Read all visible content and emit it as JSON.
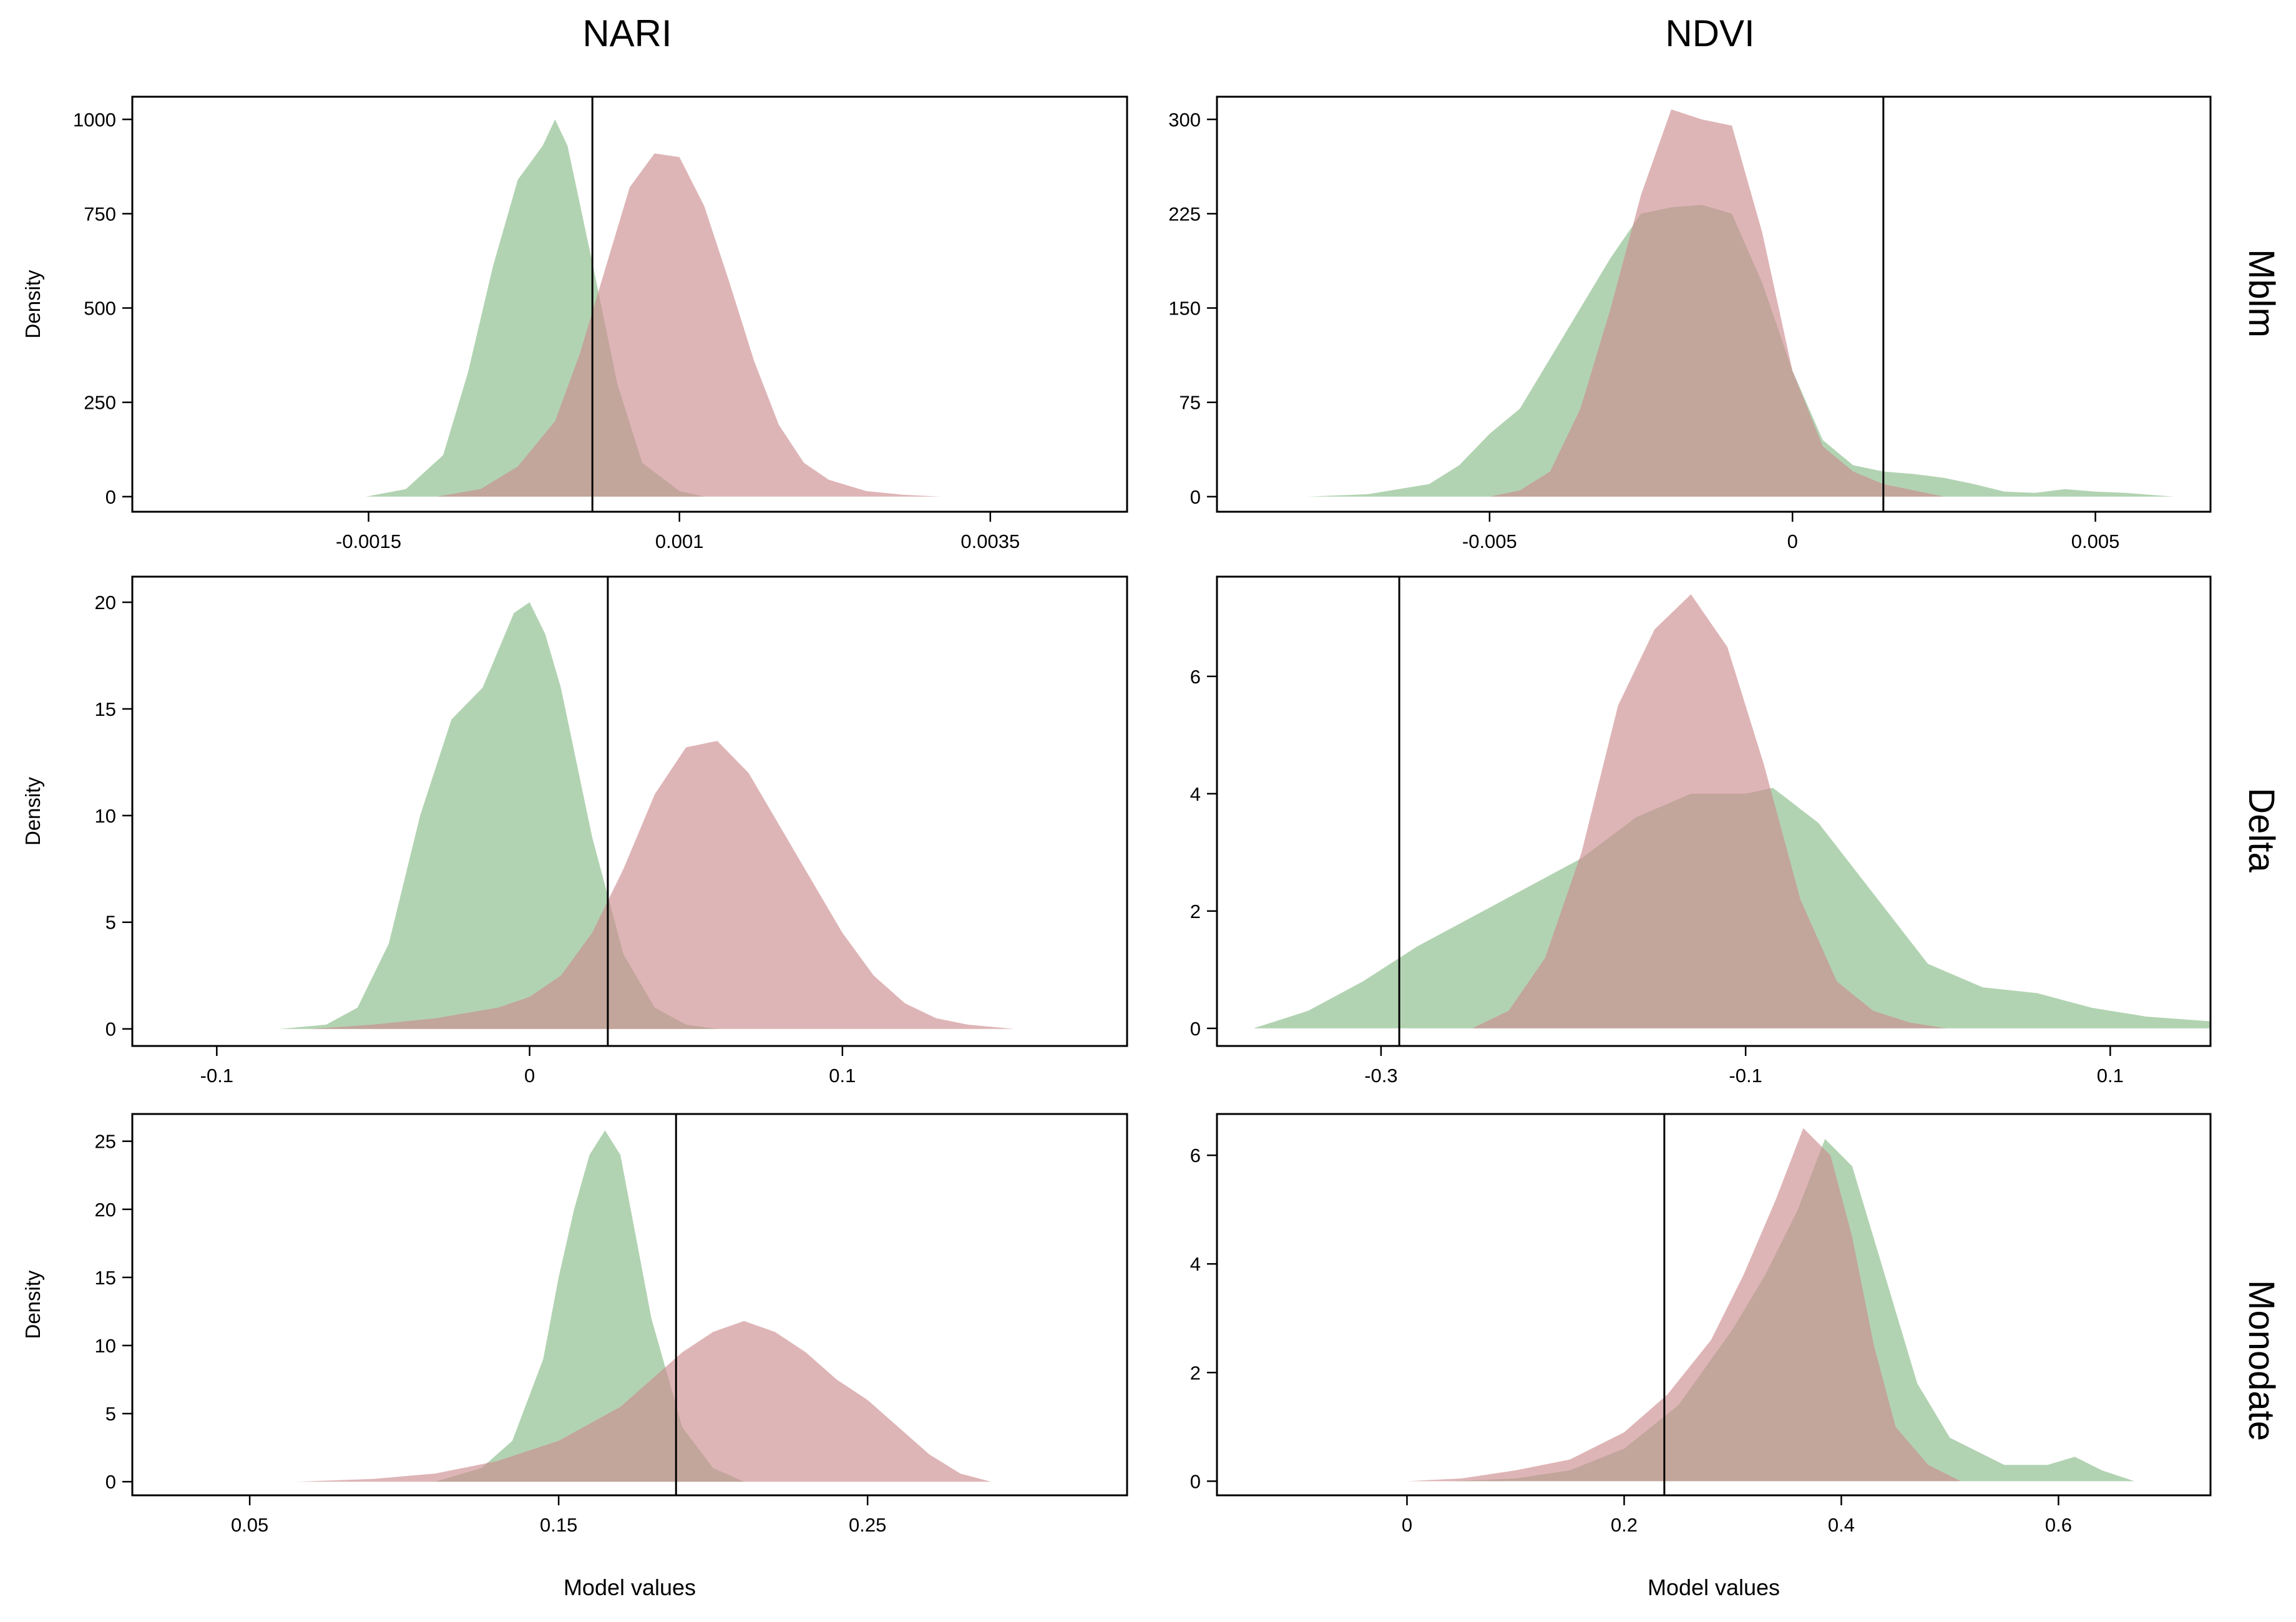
{
  "figure": {
    "col_titles": [
      "NARI",
      "NDVI"
    ],
    "row_labels": [
      "Mblm",
      "Delta",
      "Monodate"
    ],
    "colors": {
      "green": "#97c497",
      "red": "#cb8a8d",
      "overlap": "#a38f7d"
    }
  },
  "chart_data": [
    {
      "id": "nari-mblm",
      "type": "area",
      "column": "NARI",
      "row": "Mblm",
      "ylabel": "Density",
      "xlabel": "",
      "xlim": [
        -0.0034,
        0.0046
      ],
      "ylim": [
        -40,
        1060
      ],
      "xticks": [
        -0.0015,
        0.001,
        0.0035
      ],
      "xtick_labels": [
        "-0.0015",
        "0.001",
        "0.0035"
      ],
      "yticks": [
        0,
        250,
        500,
        750,
        1000
      ],
      "ytick_labels": [
        "0",
        "250",
        "500",
        "750",
        "1000"
      ],
      "vline": 0.0003,
      "series": [
        {
          "name": "green",
          "color": "#97c497",
          "x": [
            -0.00152,
            -0.0012,
            -0.0009,
            -0.0007,
            -0.0005,
            -0.0003,
            -0.0001,
            0.0,
            0.0001,
            0.0003,
            0.0005,
            0.0007,
            0.001,
            0.0012
          ],
          "y": [
            0,
            20,
            110,
            330,
            610,
            840,
            930,
            1000,
            930,
            620,
            300,
            90,
            15,
            0
          ]
        },
        {
          "name": "red",
          "color": "#cb8a8d",
          "x": [
            -0.00095,
            -0.0006,
            -0.0003,
            0.0,
            0.0002,
            0.0004,
            0.0006,
            0.0008,
            0.001,
            0.0012,
            0.0014,
            0.0016,
            0.0018,
            0.002,
            0.0022,
            0.0025,
            0.0028,
            0.0031
          ],
          "y": [
            0,
            20,
            80,
            200,
            380,
            600,
            820,
            910,
            900,
            770,
            570,
            360,
            190,
            90,
            45,
            15,
            5,
            0
          ]
        }
      ]
    },
    {
      "id": "ndvi-mblm",
      "type": "area",
      "column": "NDVI",
      "row": "Mblm",
      "ylabel": "",
      "xlabel": "",
      "xlim": [
        -0.0095,
        0.0069
      ],
      "ylim": [
        -12,
        318
      ],
      "xticks": [
        -0.005,
        0,
        0.005
      ],
      "xtick_labels": [
        "-0.005",
        "0",
        "0.005"
      ],
      "yticks": [
        0,
        75,
        150,
        225,
        300
      ],
      "ytick_labels": [
        "0",
        "75",
        "150",
        "225",
        "300"
      ],
      "vline": 0.0015,
      "series": [
        {
          "name": "green",
          "color": "#97c497",
          "x": [
            -0.008,
            -0.007,
            -0.006,
            -0.0055,
            -0.005,
            -0.0045,
            -0.004,
            -0.0035,
            -0.003,
            -0.0025,
            -0.002,
            -0.0015,
            -0.001,
            -0.0005,
            0.0,
            0.0005,
            0.001,
            0.0015,
            0.002,
            0.0025,
            0.003,
            0.0035,
            0.004,
            0.0045,
            0.005,
            0.0055,
            0.0063
          ],
          "y": [
            0,
            2,
            10,
            25,
            50,
            70,
            110,
            150,
            190,
            225,
            230,
            232,
            225,
            170,
            100,
            45,
            25,
            20,
            18,
            15,
            10,
            4,
            3,
            6,
            4,
            3,
            0
          ]
        },
        {
          "name": "red",
          "color": "#cb8a8d",
          "x": [
            -0.005,
            -0.0045,
            -0.004,
            -0.0035,
            -0.003,
            -0.0025,
            -0.002,
            -0.0015,
            -0.001,
            -0.0005,
            0.0,
            0.0005,
            0.001,
            0.0015,
            0.002,
            0.0025
          ],
          "y": [
            0,
            5,
            20,
            70,
            150,
            240,
            308,
            300,
            295,
            210,
            100,
            40,
            20,
            10,
            5,
            0
          ]
        }
      ]
    },
    {
      "id": "nari-delta",
      "type": "area",
      "column": "NARI",
      "row": "Delta",
      "ylabel": "Density",
      "xlabel": "",
      "xlim": [
        -0.127,
        0.191
      ],
      "ylim": [
        -0.8,
        21.2
      ],
      "xticks": [
        -0.1,
        0,
        0.1
      ],
      "xtick_labels": [
        "-0.1",
        "0",
        "0.1"
      ],
      "yticks": [
        0,
        5,
        10,
        15,
        20
      ],
      "ytick_labels": [
        "0",
        "5",
        "10",
        "15",
        "20"
      ],
      "vline": 0.025,
      "series": [
        {
          "name": "green",
          "color": "#97c497",
          "x": [
            -0.08,
            -0.065,
            -0.055,
            -0.045,
            -0.035,
            -0.025,
            -0.015,
            -0.005,
            0.0,
            0.005,
            0.01,
            0.02,
            0.03,
            0.04,
            0.05,
            0.06
          ],
          "y": [
            0,
            0.2,
            1.0,
            4.0,
            10.0,
            14.5,
            16.0,
            19.5,
            20.0,
            18.5,
            16.0,
            9.0,
            3.5,
            1.0,
            0.2,
            0
          ]
        },
        {
          "name": "red",
          "color": "#cb8a8d",
          "x": [
            -0.07,
            -0.05,
            -0.03,
            -0.01,
            0.0,
            0.01,
            0.02,
            0.03,
            0.04,
            0.05,
            0.06,
            0.07,
            0.08,
            0.09,
            0.1,
            0.11,
            0.12,
            0.13,
            0.14,
            0.155
          ],
          "y": [
            0,
            0.2,
            0.5,
            1.0,
            1.5,
            2.5,
            4.5,
            7.5,
            11.0,
            13.2,
            13.5,
            12.0,
            9.5,
            7.0,
            4.5,
            2.5,
            1.2,
            0.5,
            0.2,
            0
          ]
        }
      ]
    },
    {
      "id": "ndvi-delta",
      "type": "area",
      "column": "NDVI",
      "row": "Delta",
      "ylabel": "",
      "xlabel": "",
      "xlim": [
        -0.39,
        0.155
      ],
      "ylim": [
        -0.3,
        7.7
      ],
      "xticks": [
        -0.3,
        -0.1,
        0.1
      ],
      "xtick_labels": [
        "-0.3",
        "-0.1",
        "0.1"
      ],
      "yticks": [
        0,
        2,
        4,
        6
      ],
      "ytick_labels": [
        "0",
        "2",
        "4",
        "6"
      ],
      "vline": -0.29,
      "series": [
        {
          "name": "green",
          "color": "#97c497",
          "x": [
            -0.37,
            -0.34,
            -0.31,
            -0.28,
            -0.25,
            -0.22,
            -0.19,
            -0.16,
            -0.13,
            -0.1,
            -0.085,
            -0.06,
            -0.03,
            0.0,
            0.03,
            0.06,
            0.09,
            0.12,
            0.155
          ],
          "y": [
            0,
            0.3,
            0.8,
            1.4,
            1.9,
            2.4,
            2.9,
            3.6,
            4.0,
            4.0,
            4.1,
            3.5,
            2.3,
            1.1,
            0.7,
            0.6,
            0.35,
            0.2,
            0.12
          ]
        },
        {
          "name": "red",
          "color": "#cb8a8d",
          "x": [
            -0.25,
            -0.23,
            -0.21,
            -0.19,
            -0.17,
            -0.15,
            -0.13,
            -0.11,
            -0.09,
            -0.07,
            -0.05,
            -0.03,
            -0.01,
            0.01
          ],
          "y": [
            0,
            0.3,
            1.2,
            3.0,
            5.5,
            6.8,
            7.4,
            6.5,
            4.5,
            2.2,
            0.8,
            0.3,
            0.1,
            0
          ]
        }
      ]
    },
    {
      "id": "nari-monodate",
      "type": "area",
      "column": "NARI",
      "row": "Monodate",
      "ylabel": "Density",
      "xlabel": "Model values",
      "xlim": [
        0.012,
        0.334
      ],
      "ylim": [
        -1.0,
        27.0
      ],
      "xticks": [
        0.05,
        0.15,
        0.25
      ],
      "xtick_labels": [
        "0.05",
        "0.15",
        "0.25"
      ],
      "yticks": [
        0,
        5,
        10,
        15,
        20,
        25
      ],
      "ytick_labels": [
        "0",
        "5",
        "10",
        "15",
        "20",
        "25"
      ],
      "vline": 0.188,
      "series": [
        {
          "name": "green",
          "color": "#97c497",
          "x": [
            0.11,
            0.125,
            0.135,
            0.145,
            0.15,
            0.155,
            0.16,
            0.165,
            0.17,
            0.175,
            0.18,
            0.19,
            0.2,
            0.21
          ],
          "y": [
            0,
            1.0,
            3.0,
            9.0,
            15.0,
            20.0,
            24.0,
            25.8,
            24.0,
            18.0,
            12.0,
            4.0,
            1.0,
            0
          ]
        },
        {
          "name": "red",
          "color": "#cb8a8d",
          "x": [
            0.065,
            0.09,
            0.11,
            0.13,
            0.15,
            0.17,
            0.18,
            0.19,
            0.2,
            0.21,
            0.22,
            0.23,
            0.24,
            0.25,
            0.26,
            0.27,
            0.28,
            0.29
          ],
          "y": [
            0,
            0.2,
            0.6,
            1.5,
            3.0,
            5.5,
            7.5,
            9.5,
            11.0,
            11.8,
            11.0,
            9.5,
            7.5,
            6.0,
            4.0,
            2.0,
            0.6,
            0
          ]
        }
      ]
    },
    {
      "id": "ndvi-monodate",
      "type": "area",
      "column": "NDVI",
      "row": "Monodate",
      "ylabel": "",
      "xlabel": "Model values",
      "xlim": [
        -0.175,
        0.74
      ],
      "ylim": [
        -0.26,
        6.76
      ],
      "xticks": [
        0,
        0.2,
        0.4,
        0.6
      ],
      "xtick_labels": [
        "0",
        "0.2",
        "0.4",
        "0.6"
      ],
      "yticks": [
        0,
        2,
        4,
        6
      ],
      "ytick_labels": [
        "0",
        "2",
        "4",
        "6"
      ],
      "vline": 0.237,
      "series": [
        {
          "name": "green",
          "color": "#97c497",
          "x": [
            0.04,
            0.1,
            0.15,
            0.2,
            0.25,
            0.3,
            0.33,
            0.36,
            0.385,
            0.41,
            0.44,
            0.47,
            0.5,
            0.55,
            0.59,
            0.615,
            0.64,
            0.67
          ],
          "y": [
            0,
            0.05,
            0.2,
            0.6,
            1.4,
            2.8,
            3.8,
            5.0,
            6.3,
            5.8,
            3.8,
            1.8,
            0.8,
            0.3,
            0.3,
            0.45,
            0.2,
            0
          ]
        },
        {
          "name": "red",
          "color": "#cb8a8d",
          "x": [
            0.0,
            0.05,
            0.1,
            0.15,
            0.2,
            0.24,
            0.28,
            0.31,
            0.34,
            0.365,
            0.39,
            0.41,
            0.43,
            0.45,
            0.48,
            0.51
          ],
          "y": [
            0,
            0.05,
            0.2,
            0.4,
            0.9,
            1.6,
            2.6,
            3.8,
            5.2,
            6.5,
            6.0,
            4.5,
            2.5,
            1.0,
            0.3,
            0
          ]
        }
      ]
    }
  ]
}
